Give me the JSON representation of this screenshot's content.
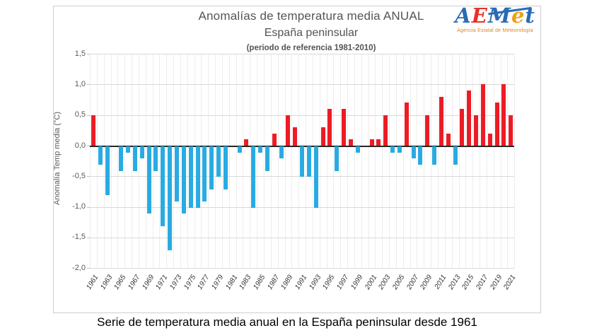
{
  "title": {
    "line1": "Anomalías de temperatura media ANUAL",
    "line2": "España peninsular",
    "line3": "(periodo de referencia 1981-2010)"
  },
  "logo": {
    "letters": [
      {
        "ch": "A",
        "color": "#2a6bb5"
      },
      {
        "ch": "E",
        "color": "#e63329"
      },
      {
        "ch": "M",
        "color": "#2a6bb5"
      },
      {
        "ch": "e",
        "color": "#f2a016"
      },
      {
        "ch": "t",
        "color": "#2a6bb5"
      }
    ],
    "subtitle": "Agencia Estatal de Meteorología"
  },
  "caption": "Serie de temperatura media anual en la España peninsular desde 1961",
  "chart_data": {
    "type": "bar",
    "title": "Anomalías de temperatura media ANUAL España peninsular (periodo de referencia 1981-2010)",
    "xlabel": "",
    "ylabel": "Anomalía Temp media (°C)",
    "ylim": [
      -2.0,
      1.5
    ],
    "grid": true,
    "yticks": [
      1.5,
      1.0,
      0.5,
      0.0,
      -0.5,
      -1.0,
      -1.5,
      -2.0
    ],
    "ytick_labels": [
      "1,5",
      "1,0",
      "0,5",
      "0,0",
      "-0,5",
      "-1,0",
      "-1,5",
      "-2,0"
    ],
    "xtick_labels": [
      "1961",
      "1963",
      "1965",
      "1967",
      "1969",
      "1971",
      "1973",
      "1975",
      "1977",
      "1979",
      "1981",
      "1983",
      "1985",
      "1987",
      "1989",
      "1991",
      "1993",
      "1995",
      "1997",
      "1999",
      "2001",
      "2003",
      "2005",
      "2007",
      "2009",
      "2011",
      "2013",
      "2015",
      "2017",
      "2019",
      "2021"
    ],
    "years": [
      1961,
      1962,
      1963,
      1964,
      1965,
      1966,
      1967,
      1968,
      1969,
      1970,
      1971,
      1972,
      1973,
      1974,
      1975,
      1976,
      1977,
      1978,
      1979,
      1980,
      1981,
      1982,
      1983,
      1984,
      1985,
      1986,
      1987,
      1988,
      1989,
      1990,
      1991,
      1992,
      1993,
      1994,
      1995,
      1996,
      1997,
      1998,
      1999,
      2000,
      2001,
      2002,
      2003,
      2004,
      2005,
      2006,
      2007,
      2008,
      2009,
      2010,
      2011,
      2012,
      2013,
      2014,
      2015,
      2016,
      2017,
      2018,
      2019,
      2020,
      2021
    ],
    "values": [
      0.5,
      -0.3,
      -0.8,
      0.0,
      -0.4,
      -0.1,
      -0.4,
      -0.2,
      -1.1,
      -0.4,
      -1.3,
      -1.7,
      -0.9,
      -1.1,
      -1.0,
      -1.0,
      -0.9,
      -0.7,
      -0.5,
      -0.7,
      0.0,
      -0.1,
      0.1,
      -1.0,
      -0.1,
      -0.4,
      0.2,
      -0.2,
      0.5,
      0.3,
      -0.5,
      -0.5,
      -1.0,
      0.3,
      0.6,
      -0.4,
      0.6,
      0.1,
      -0.1,
      0.0,
      0.1,
      0.1,
      0.5,
      -0.1,
      -0.1,
      0.7,
      -0.2,
      -0.3,
      0.5,
      -0.3,
      0.8,
      0.2,
      -0.3,
      0.6,
      0.9,
      0.5,
      1.0,
      0.2,
      0.7,
      1.0,
      0.5
    ],
    "colors": {
      "positive": "#ED1C24",
      "negative": "#29ABE2"
    }
  }
}
